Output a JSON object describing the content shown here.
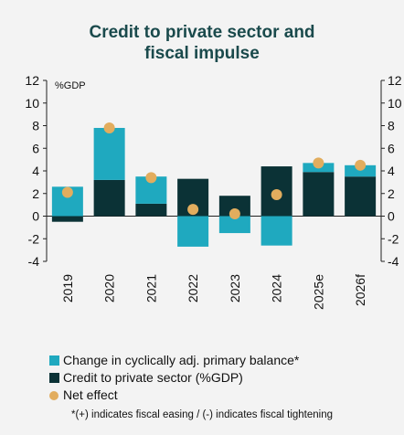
{
  "chart_data": {
    "type": "bar",
    "title_lines": [
      "Credit to private sector and",
      "fiscal impulse"
    ],
    "unit_label": "%GDP",
    "categories": [
      "2019",
      "2020",
      "2021",
      "2022",
      "2023",
      "2024",
      "2025e",
      "2026f"
    ],
    "series": [
      {
        "name": "Change in cyclically adj. primary balance*",
        "kind": "stacked-bar",
        "color": "#1fa9bf",
        "values": [
          2.6,
          4.6,
          2.4,
          -2.7,
          -1.5,
          -2.6,
          0.8,
          1.0
        ]
      },
      {
        "name": "Credit to private sector (%GDP)",
        "kind": "stacked-bar",
        "color": "#0b3236",
        "values": [
          -0.5,
          3.2,
          1.1,
          3.3,
          1.8,
          4.4,
          3.9,
          3.5
        ]
      },
      {
        "name": "Net effect",
        "kind": "dot",
        "color": "#e2ad5e",
        "values": [
          2.1,
          7.8,
          3.4,
          0.6,
          0.2,
          1.9,
          4.7,
          4.5
        ]
      }
    ],
    "ylim": [
      -4,
      12
    ],
    "yticks": [
      -4,
      -2,
      0,
      2,
      4,
      6,
      8,
      10,
      12
    ],
    "grid": false,
    "legend_position": "bottom",
    "footnote": "*(+) indicates fiscal easing / (-) indicates fiscal tightening"
  },
  "colors": {
    "title": "#1a4a4c",
    "background": "#f3f3f3"
  }
}
